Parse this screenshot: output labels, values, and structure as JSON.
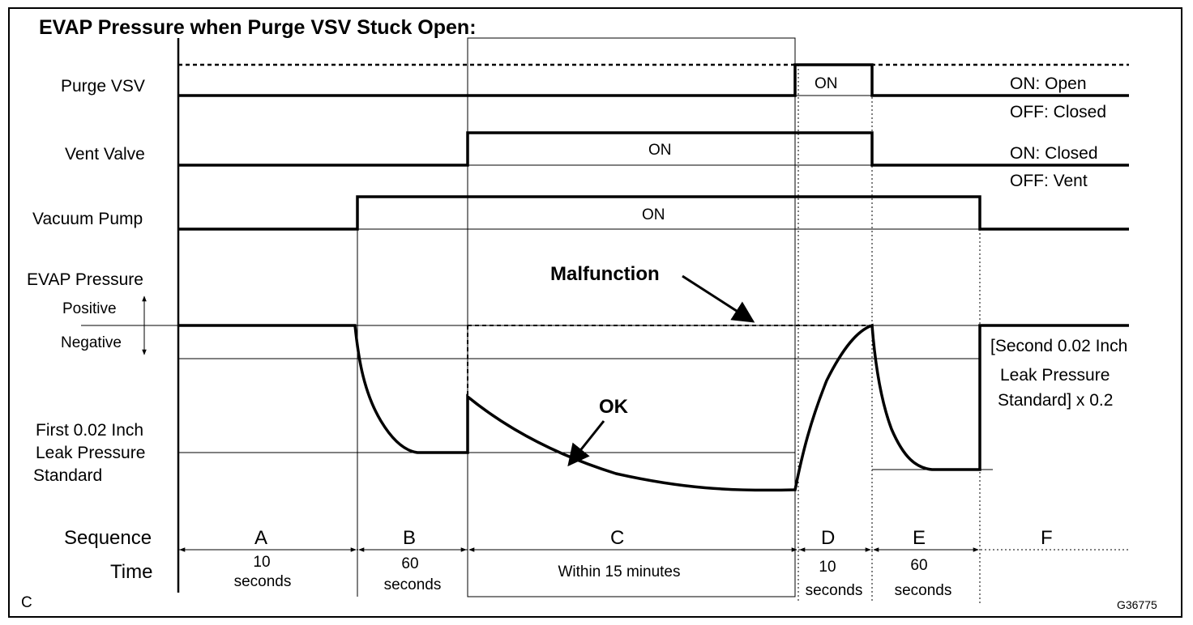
{
  "title": "EVAP Pressure when Purge VSV Stuck Open:",
  "signals": {
    "purge_vsv": "Purge VSV",
    "vent_valve": "Vent Valve",
    "vacuum_pump": "Vacuum Pump",
    "evap_pressure": "EVAP Pressure",
    "positive": "Positive",
    "negative": "Negative"
  },
  "first_standard": [
    "First 0.02 Inch",
    "Leak Pressure",
    "Standard"
  ],
  "second_standard": [
    "[Second 0.02 Inch",
    "Leak Pressure",
    "Standard] x 0.2"
  ],
  "state_labels": {
    "purge_on": "ON",
    "vent_on": "ON",
    "pump_on": "ON"
  },
  "legend": {
    "purge_on": "ON: Open",
    "purge_off": "OFF: Closed",
    "vent_on": "ON: Closed",
    "vent_off": "OFF: Vent"
  },
  "annotations": {
    "malfunction": "Malfunction",
    "ok": "OK"
  },
  "sequence_label": "Sequence",
  "time_label": "Time",
  "sequence": [
    {
      "letter": "A",
      "time": [
        "10",
        "seconds"
      ]
    },
    {
      "letter": "B",
      "time": [
        "60",
        "seconds"
      ]
    },
    {
      "letter": "C",
      "time": [
        "Within 15 minutes"
      ]
    },
    {
      "letter": "D",
      "time": [
        "10",
        "seconds"
      ]
    },
    {
      "letter": "E",
      "time": [
        "60",
        "seconds"
      ]
    },
    {
      "letter": "F",
      "time": []
    }
  ],
  "corner_left": "C",
  "figure_id": "G36775"
}
